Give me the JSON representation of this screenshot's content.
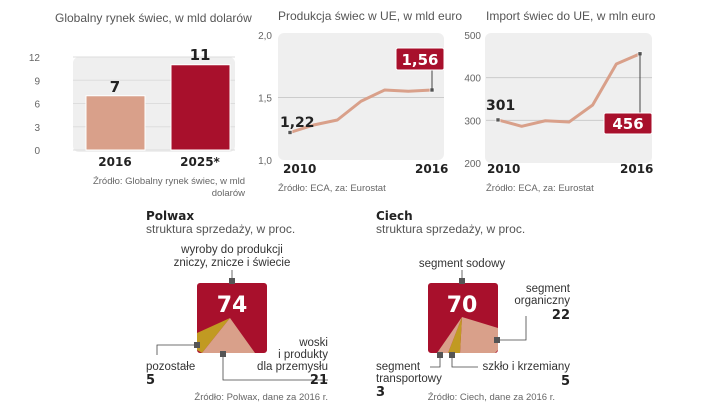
{
  "colors": {
    "red": "#a8102c",
    "peach": "#d9a08a",
    "olive": "#c19a22",
    "bg": "#eeeeee"
  },
  "chart_data": [
    {
      "type": "bar",
      "title": "Globalny rynek świec, w mld dolarów",
      "categories": [
        "2016",
        "2025*"
      ],
      "values": [
        7,
        11
      ],
      "value_labels": [
        "7",
        "11"
      ],
      "yticks": [
        "0",
        "3",
        "6",
        "9",
        "12"
      ],
      "ylim": [
        0,
        12
      ],
      "source": [
        "Źródło: Globalny rynek świec, w mld",
        "dolarów"
      ]
    },
    {
      "type": "line",
      "title": "Produkcja świec w UE, w mld euro",
      "x": [
        2010,
        2011,
        2012,
        2013,
        2014,
        2015,
        2016
      ],
      "values": [
        1.22,
        1.28,
        1.32,
        1.47,
        1.56,
        1.55,
        1.56
      ],
      "ylim": [
        1.0,
        2.0
      ],
      "yticks": [
        "2,0",
        "1,5",
        "1,0"
      ],
      "xlabels": [
        "2010",
        "2016"
      ],
      "first_label": "1,22",
      "last_label": "1,56",
      "source": "Źródło: ECA, za: Eurostat"
    },
    {
      "type": "line",
      "title": "Import świec do UE, w mln euro",
      "x": [
        2010,
        2011,
        2012,
        2013,
        2014,
        2015,
        2016
      ],
      "values": [
        301,
        286,
        299,
        296,
        336,
        432,
        456
      ],
      "ylim": [
        200,
        500
      ],
      "yticks": [
        "500",
        "400",
        "300",
        "200"
      ],
      "xlabels": [
        "2010",
        "2016"
      ],
      "first_label": "301",
      "last_label": "456",
      "source": "Źródło: ECA, za: Eurostat"
    },
    {
      "type": "pie",
      "title": "Polwax",
      "subtitle": "struktura sprzedaży, w proc.",
      "slices": [
        {
          "label": "wyroby do produkcji zniczy, znicze i świecie",
          "lines": [
            "wyroby do produkcji",
            "zniczy, znicze i świecie"
          ],
          "value": 74
        },
        {
          "label": "woski i produkty dla przemysłu",
          "lines": [
            "woski",
            "i produkty",
            "dla przemysłu"
          ],
          "value": 21
        },
        {
          "label": "pozostałe",
          "lines": [
            "pozostałe"
          ],
          "value": 5
        }
      ],
      "source": "Źródło: Polwax, dane za 2016 r."
    },
    {
      "type": "pie",
      "title": "Ciech",
      "subtitle": "struktura sprzedaży, w proc.",
      "slices": [
        {
          "label": "segment sodowy",
          "lines": [
            "segment sodowy"
          ],
          "value": 70
        },
        {
          "label": "segment organiczny",
          "lines": [
            "segment",
            "organiczny"
          ],
          "value": 22
        },
        {
          "label": "szkło i krzemiany",
          "lines": [
            "szkło i krzemiany"
          ],
          "value": 5
        },
        {
          "label": "segment transportowy",
          "lines": [
            "segment",
            "transportowy"
          ],
          "value": 3
        }
      ],
      "source": "Źródło: Ciech, dane za 2016 r."
    }
  ]
}
